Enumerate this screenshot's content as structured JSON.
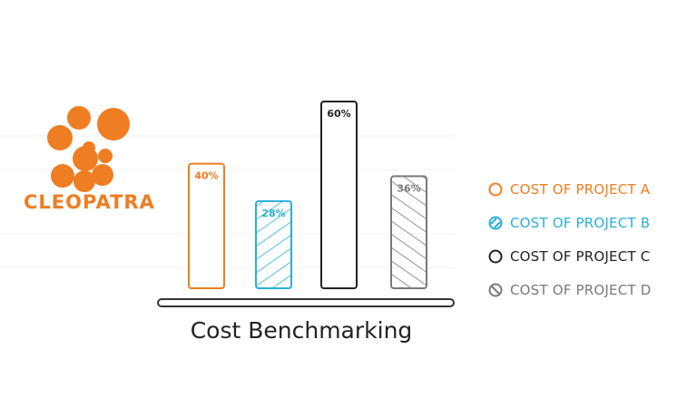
{
  "logo": {
    "text": "CLEOPATRA",
    "color": "#ef7d22"
  },
  "chart_data": {
    "type": "bar",
    "title": "Cost Benchmarking",
    "categories": [
      "COST OF PROJECT A",
      "COST OF PROJECT B",
      "COST OF PROJECT C",
      "COST OF PROJECT D"
    ],
    "values": [
      40,
      28,
      60,
      36
    ],
    "data_labels": [
      "40%",
      "28%",
      "60%",
      "36%"
    ],
    "colors": [
      "#ef7d22",
      "#2aaed6",
      "#222222",
      "#7a7a7a"
    ],
    "hatched": [
      false,
      true,
      false,
      true
    ],
    "ylim": [
      0,
      60
    ],
    "legend_position": "right",
    "grid": true
  }
}
